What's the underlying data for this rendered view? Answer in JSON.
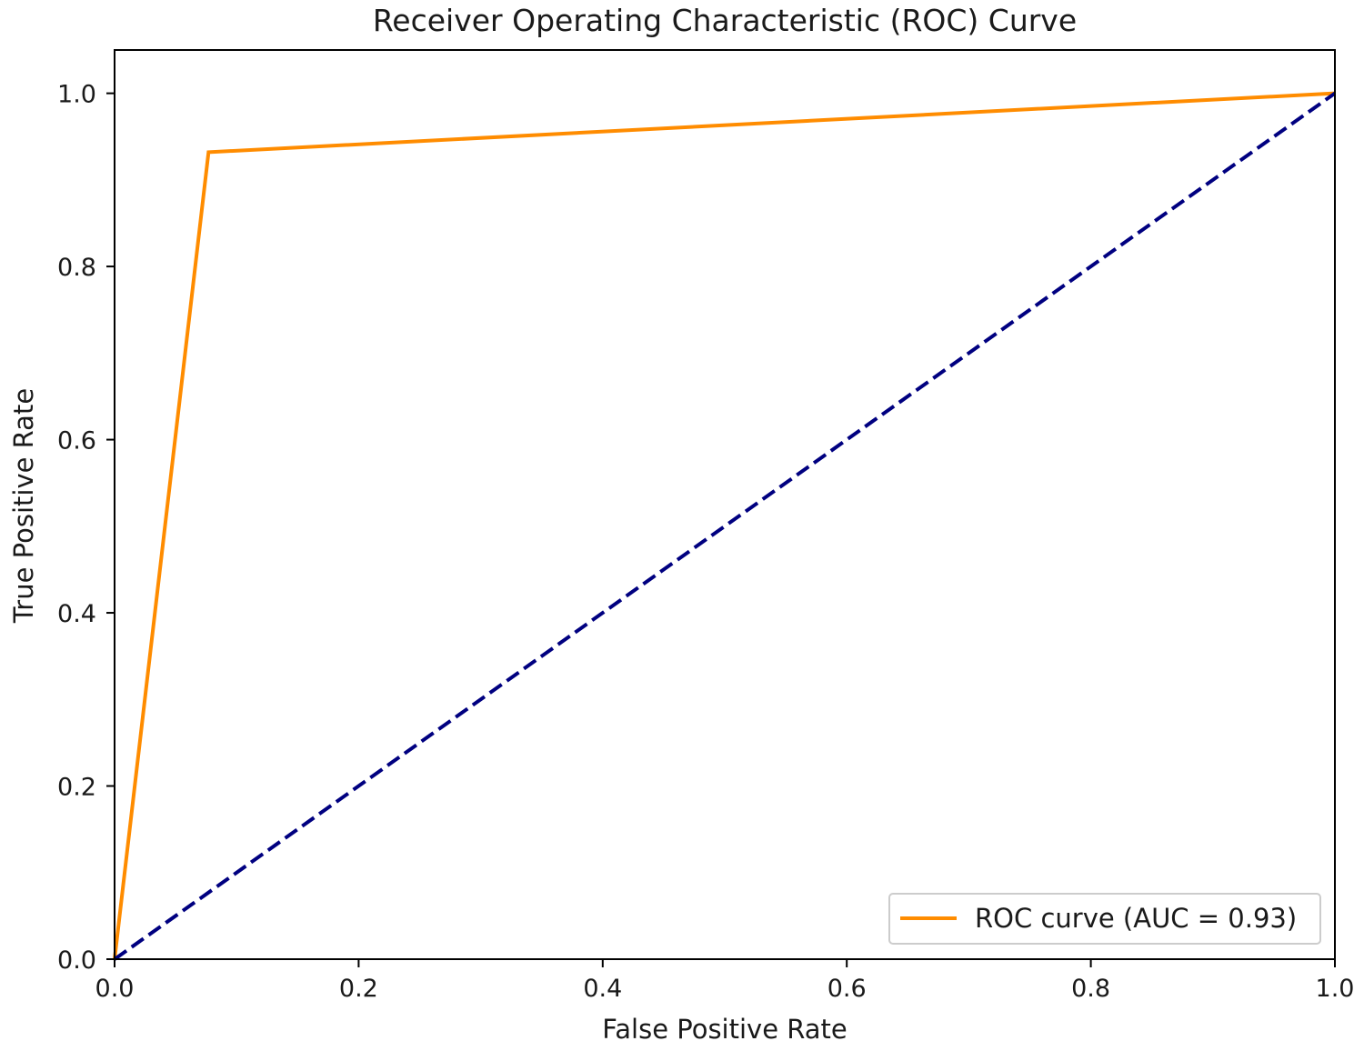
{
  "chart_data": {
    "type": "line",
    "title": "Receiver Operating Characteristic (ROC) Curve",
    "xlabel": "False Positive Rate",
    "ylabel": "True Positive Rate",
    "xlim": [
      0.0,
      1.0
    ],
    "ylim": [
      0.0,
      1.05
    ],
    "xticks": [
      "0.0",
      "0.2",
      "0.4",
      "0.6",
      "0.8",
      "1.0"
    ],
    "yticks": [
      "0.0",
      "0.2",
      "0.4",
      "0.6",
      "0.8",
      "1.0"
    ],
    "grid": false,
    "legend_position": "lower right",
    "series": [
      {
        "name": "ROC curve (AUC = 0.93)",
        "color": "#ff8c00",
        "style": "solid",
        "x": [
          0.0,
          0.077,
          1.0
        ],
        "y": [
          0.0,
          0.932,
          1.0
        ]
      },
      {
        "color": "#000080",
        "style": "dashed",
        "x": [
          0.0,
          1.0
        ],
        "y": [
          0.0,
          1.0
        ]
      }
    ]
  }
}
